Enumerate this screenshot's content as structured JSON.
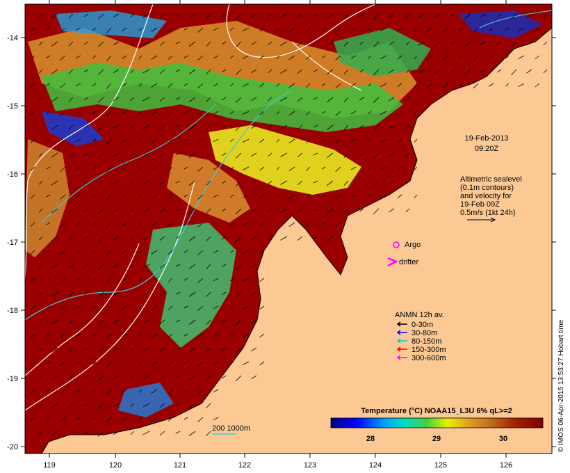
{
  "annotation": {
    "date": "19-Feb-2013",
    "time": "09:20Z",
    "altimetry": [
      "Altimetric sealevel",
      "(0.1m contours)",
      "and velocity for",
      "19-Feb 09Z",
      "0.5m/s (1kt 24h)"
    ]
  },
  "legend": {
    "argo": "Argo",
    "drifter": "drifter",
    "anmn_title": "ANMN 12h av.",
    "depths": [
      {
        "label": "0-30m",
        "color": "#000000"
      },
      {
        "label": "30-80m",
        "color": "#0000ff"
      },
      {
        "label": "80-150m",
        "color": "#00d0d0"
      },
      {
        "label": "150-300m",
        "color": "#ff0000"
      },
      {
        "label": "300-600m",
        "color": "#ff00ff"
      }
    ]
  },
  "colorbar": {
    "title": "Temperature (°C) NOAA15_L3U 6% qL>=2",
    "ticks": [
      "28",
      "29",
      "30"
    ]
  },
  "isobath": "200  1000m",
  "credit": "© IMOS 06-Apr-2015 13:53:27 Hobart time",
  "axes": {
    "x_ticks": [
      "119",
      "120",
      "121",
      "122",
      "123",
      "124",
      "125",
      "126"
    ],
    "y_ticks": [
      "-14",
      "-15",
      "-16",
      "-17",
      "-18",
      "-19",
      "-20"
    ]
  },
  "colors": {
    "land": "#fcc995",
    "warm": "#9b0000",
    "background": "#ffffff"
  }
}
